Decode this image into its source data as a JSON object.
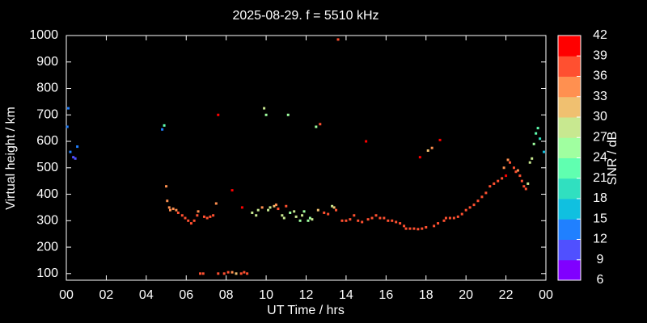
{
  "chart_data": {
    "type": "scatter",
    "title": "2025-08-29. f = 5510 kHz",
    "x_label": "UT Time / hrs",
    "y_label": "Virtual height / km",
    "xlim": [
      0,
      24
    ],
    "ylim": [
      75,
      1000
    ],
    "xticks": [
      {
        "value": 0,
        "label": "00"
      },
      {
        "value": 2,
        "label": "02"
      },
      {
        "value": 4,
        "label": "04"
      },
      {
        "value": 6,
        "label": "06"
      },
      {
        "value": 8,
        "label": "08"
      },
      10,
      12,
      14,
      16,
      18,
      20,
      22,
      {
        "value": 24,
        "label": "00"
      }
    ],
    "yticks": [
      100,
      200,
      300,
      400,
      500,
      600,
      700,
      800,
      900,
      1000
    ],
    "colorbar": {
      "label": "SNR / dB",
      "lim": [
        6,
        42
      ],
      "ticks": [
        6,
        9,
        12,
        15,
        18,
        21,
        24,
        27,
        30,
        33,
        36,
        39,
        42
      ],
      "colors": [
        "#8000ff",
        "#5050ff",
        "#2080ff",
        "#10c0e0",
        "#30e0c0",
        "#60ffb0",
        "#a0ffa0",
        "#c8e890",
        "#f0c070",
        "#ff9050",
        "#ff5030",
        "#ff0000"
      ]
    },
    "x": [
      0.05,
      0.1,
      0.2,
      0.35,
      0.45,
      0.55,
      4.8,
      4.9,
      5.0,
      5.05,
      5.15,
      5.2,
      5.35,
      5.5,
      5.6,
      5.8,
      5.95,
      6.1,
      6.25,
      6.4,
      6.55,
      6.6,
      6.9,
      7.05,
      7.2,
      7.35,
      7.5,
      7.6,
      8.3,
      8.8,
      6.7,
      6.85,
      7.6,
      7.9,
      8.1,
      8.3,
      8.5,
      8.75,
      8.9,
      9.05,
      9.3,
      9.5,
      9.6,
      9.8,
      9.9,
      10.0,
      10.1,
      10.2,
      10.4,
      10.5,
      10.6,
      10.8,
      10.9,
      11.0,
      11.1,
      11.2,
      11.4,
      11.5,
      11.7,
      11.8,
      11.9,
      12.1,
      12.2,
      12.3,
      12.5,
      12.6,
      12.7,
      12.9,
      13.1,
      13.3,
      13.4,
      13.5,
      13.6,
      13.8,
      14.0,
      14.2,
      14.4,
      14.6,
      14.8,
      15.0,
      15.1,
      15.3,
      15.5,
      15.7,
      15.9,
      16.1,
      16.3,
      16.5,
      16.7,
      16.9,
      17.0,
      17.2,
      17.4,
      17.6,
      17.7,
      17.8,
      18.0,
      18.1,
      18.3,
      18.4,
      18.6,
      18.7,
      18.9,
      19.0,
      19.2,
      19.4,
      19.6,
      19.8,
      20.0,
      20.2,
      20.4,
      20.6,
      20.8,
      21.0,
      21.2,
      21.4,
      21.6,
      21.8,
      21.9,
      22.0,
      22.1,
      22.2,
      22.4,
      22.5,
      22.6,
      22.7,
      22.8,
      22.9,
      23.0,
      23.1,
      23.2,
      23.3,
      23.4,
      23.5,
      23.6,
      23.7,
      23.9
    ],
    "y": [
      655,
      725,
      560,
      540,
      535,
      580,
      645,
      660,
      430,
      375,
      350,
      340,
      345,
      340,
      330,
      320,
      310,
      300,
      290,
      300,
      320,
      335,
      315,
      310,
      315,
      320,
      365,
      700,
      415,
      350,
      100,
      100,
      100,
      100,
      105,
      105,
      100,
      100,
      105,
      100,
      330,
      320,
      340,
      350,
      725,
      700,
      340,
      350,
      355,
      360,
      345,
      320,
      310,
      355,
      700,
      330,
      335,
      315,
      300,
      320,
      335,
      300,
      310,
      305,
      655,
      340,
      665,
      330,
      325,
      355,
      350,
      340,
      985,
      300,
      300,
      305,
      320,
      300,
      295,
      600,
      305,
      310,
      320,
      310,
      310,
      300,
      300,
      295,
      290,
      280,
      270,
      270,
      270,
      268,
      540,
      270,
      275,
      565,
      575,
      280,
      290,
      605,
      300,
      310,
      310,
      310,
      315,
      325,
      340,
      350,
      360,
      375,
      390,
      405,
      430,
      440,
      450,
      460,
      500,
      470,
      530,
      520,
      500,
      485,
      490,
      470,
      450,
      430,
      420,
      440,
      520,
      535,
      590,
      630,
      650,
      610,
      560
    ],
    "snr": [
      13,
      13,
      12,
      10,
      10,
      12,
      12,
      22,
      33,
      33,
      34,
      35,
      33,
      35,
      36,
      37,
      37,
      38,
      38,
      37,
      37,
      33,
      37,
      37,
      37,
      36,
      33,
      40,
      40,
      40,
      38,
      38,
      37,
      38,
      37,
      33,
      30,
      36,
      37,
      36,
      27,
      27,
      27,
      33,
      28,
      24,
      27,
      28,
      30,
      33,
      36,
      27,
      27,
      36,
      24,
      24,
      27,
      27,
      24,
      27,
      24,
      24,
      24,
      27,
      24,
      30,
      36,
      37,
      36,
      27,
      30,
      37,
      37,
      38,
      38,
      38,
      37,
      38,
      37,
      40,
      38,
      37,
      36,
      37,
      38,
      38,
      38,
      37,
      38,
      38,
      37,
      38,
      37,
      38,
      40,
      36,
      37,
      30,
      33,
      38,
      37,
      40,
      37,
      38,
      37,
      38,
      37,
      37,
      37,
      37,
      37,
      37,
      37,
      38,
      37,
      38,
      37,
      38,
      33,
      40,
      33,
      37,
      36,
      37,
      33,
      36,
      38,
      36,
      38,
      27,
      27,
      27,
      24,
      21,
      21,
      18,
      15
    ]
  }
}
